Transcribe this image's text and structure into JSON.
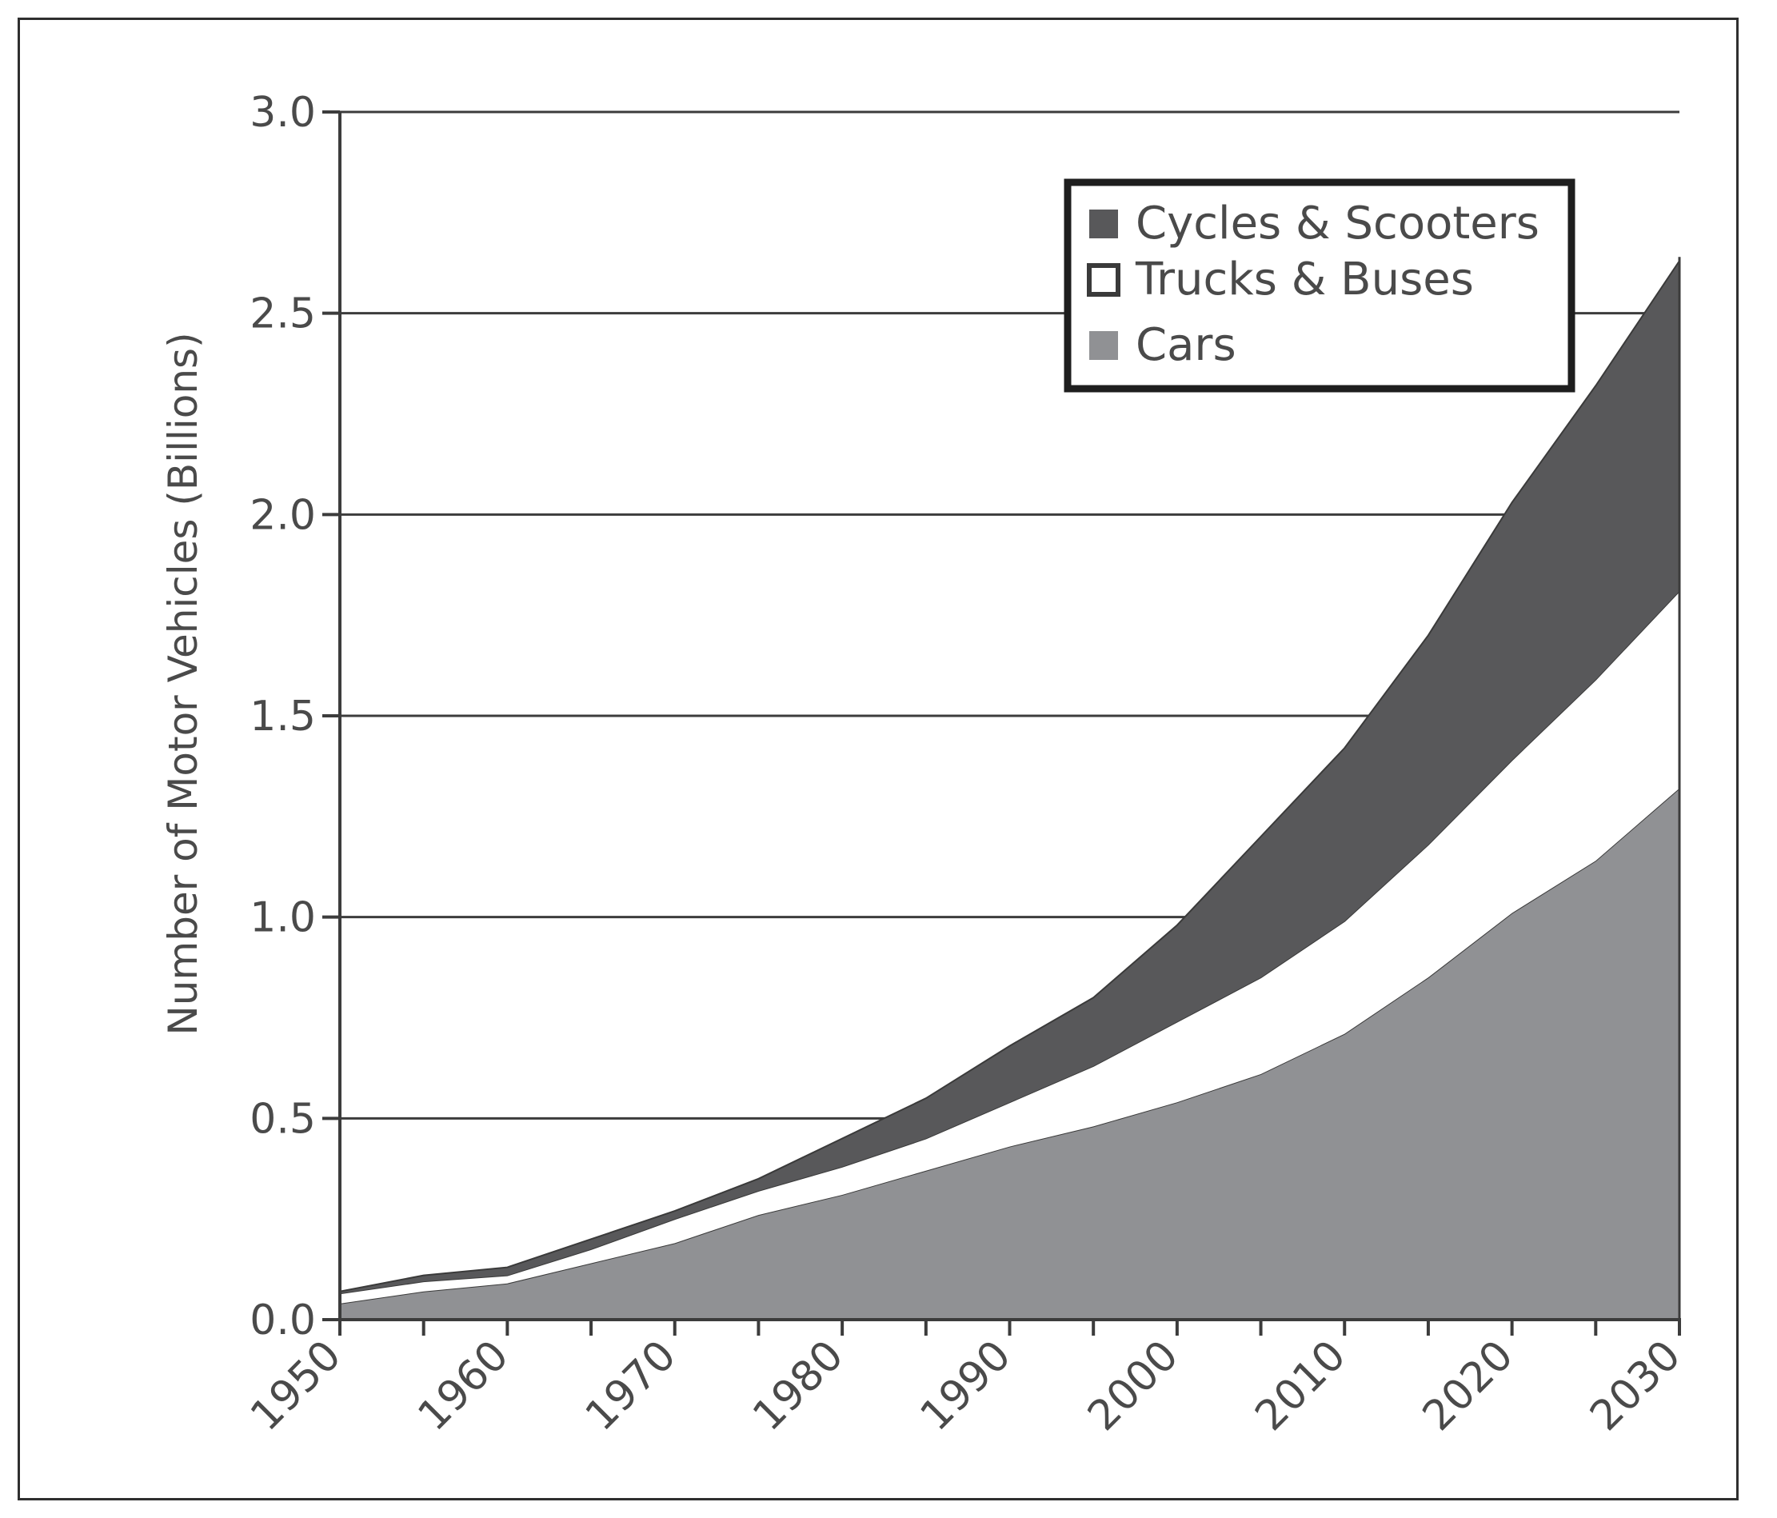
{
  "chart_data": {
    "type": "area",
    "stacked": true,
    "title": "",
    "xlabel": "",
    "ylabel": "Number of Motor Vehicles (Billions)",
    "x": [
      1950,
      1955,
      1960,
      1965,
      1970,
      1975,
      1980,
      1985,
      1990,
      1995,
      2000,
      2005,
      2010,
      2015,
      2020,
      2025,
      2030
    ],
    "xticks": [
      "1950",
      "1960",
      "1970",
      "1980",
      "1990",
      "2000",
      "2010",
      "2020",
      "2030"
    ],
    "yticks": [
      "0.0",
      "0.5",
      "1.0",
      "1.5",
      "2.0",
      "2.5",
      "3.0"
    ],
    "ylim": [
      0,
      3.0
    ],
    "xlim": [
      1950,
      2030
    ],
    "grid": "horizontal",
    "legend_position": "top-right",
    "series": [
      {
        "name": "Cars",
        "color": "#909194",
        "values": [
          0.04,
          0.07,
          0.09,
          0.14,
          0.19,
          0.26,
          0.31,
          0.37,
          0.43,
          0.48,
          0.54,
          0.61,
          0.71,
          0.85,
          1.01,
          1.14,
          1.32
        ]
      },
      {
        "name": "Trucks & Buses",
        "color": "#ffffff",
        "values": [
          0.025,
          0.025,
          0.02,
          0.035,
          0.06,
          0.06,
          0.07,
          0.08,
          0.11,
          0.15,
          0.2,
          0.24,
          0.28,
          0.33,
          0.38,
          0.45,
          0.49
        ]
      },
      {
        "name": "Cycles & Scooters",
        "color": "#58585a",
        "values": [
          0.005,
          0.015,
          0.02,
          0.025,
          0.02,
          0.03,
          0.07,
          0.1,
          0.14,
          0.17,
          0.24,
          0.35,
          0.43,
          0.52,
          0.64,
          0.73,
          0.82
        ]
      }
    ]
  }
}
